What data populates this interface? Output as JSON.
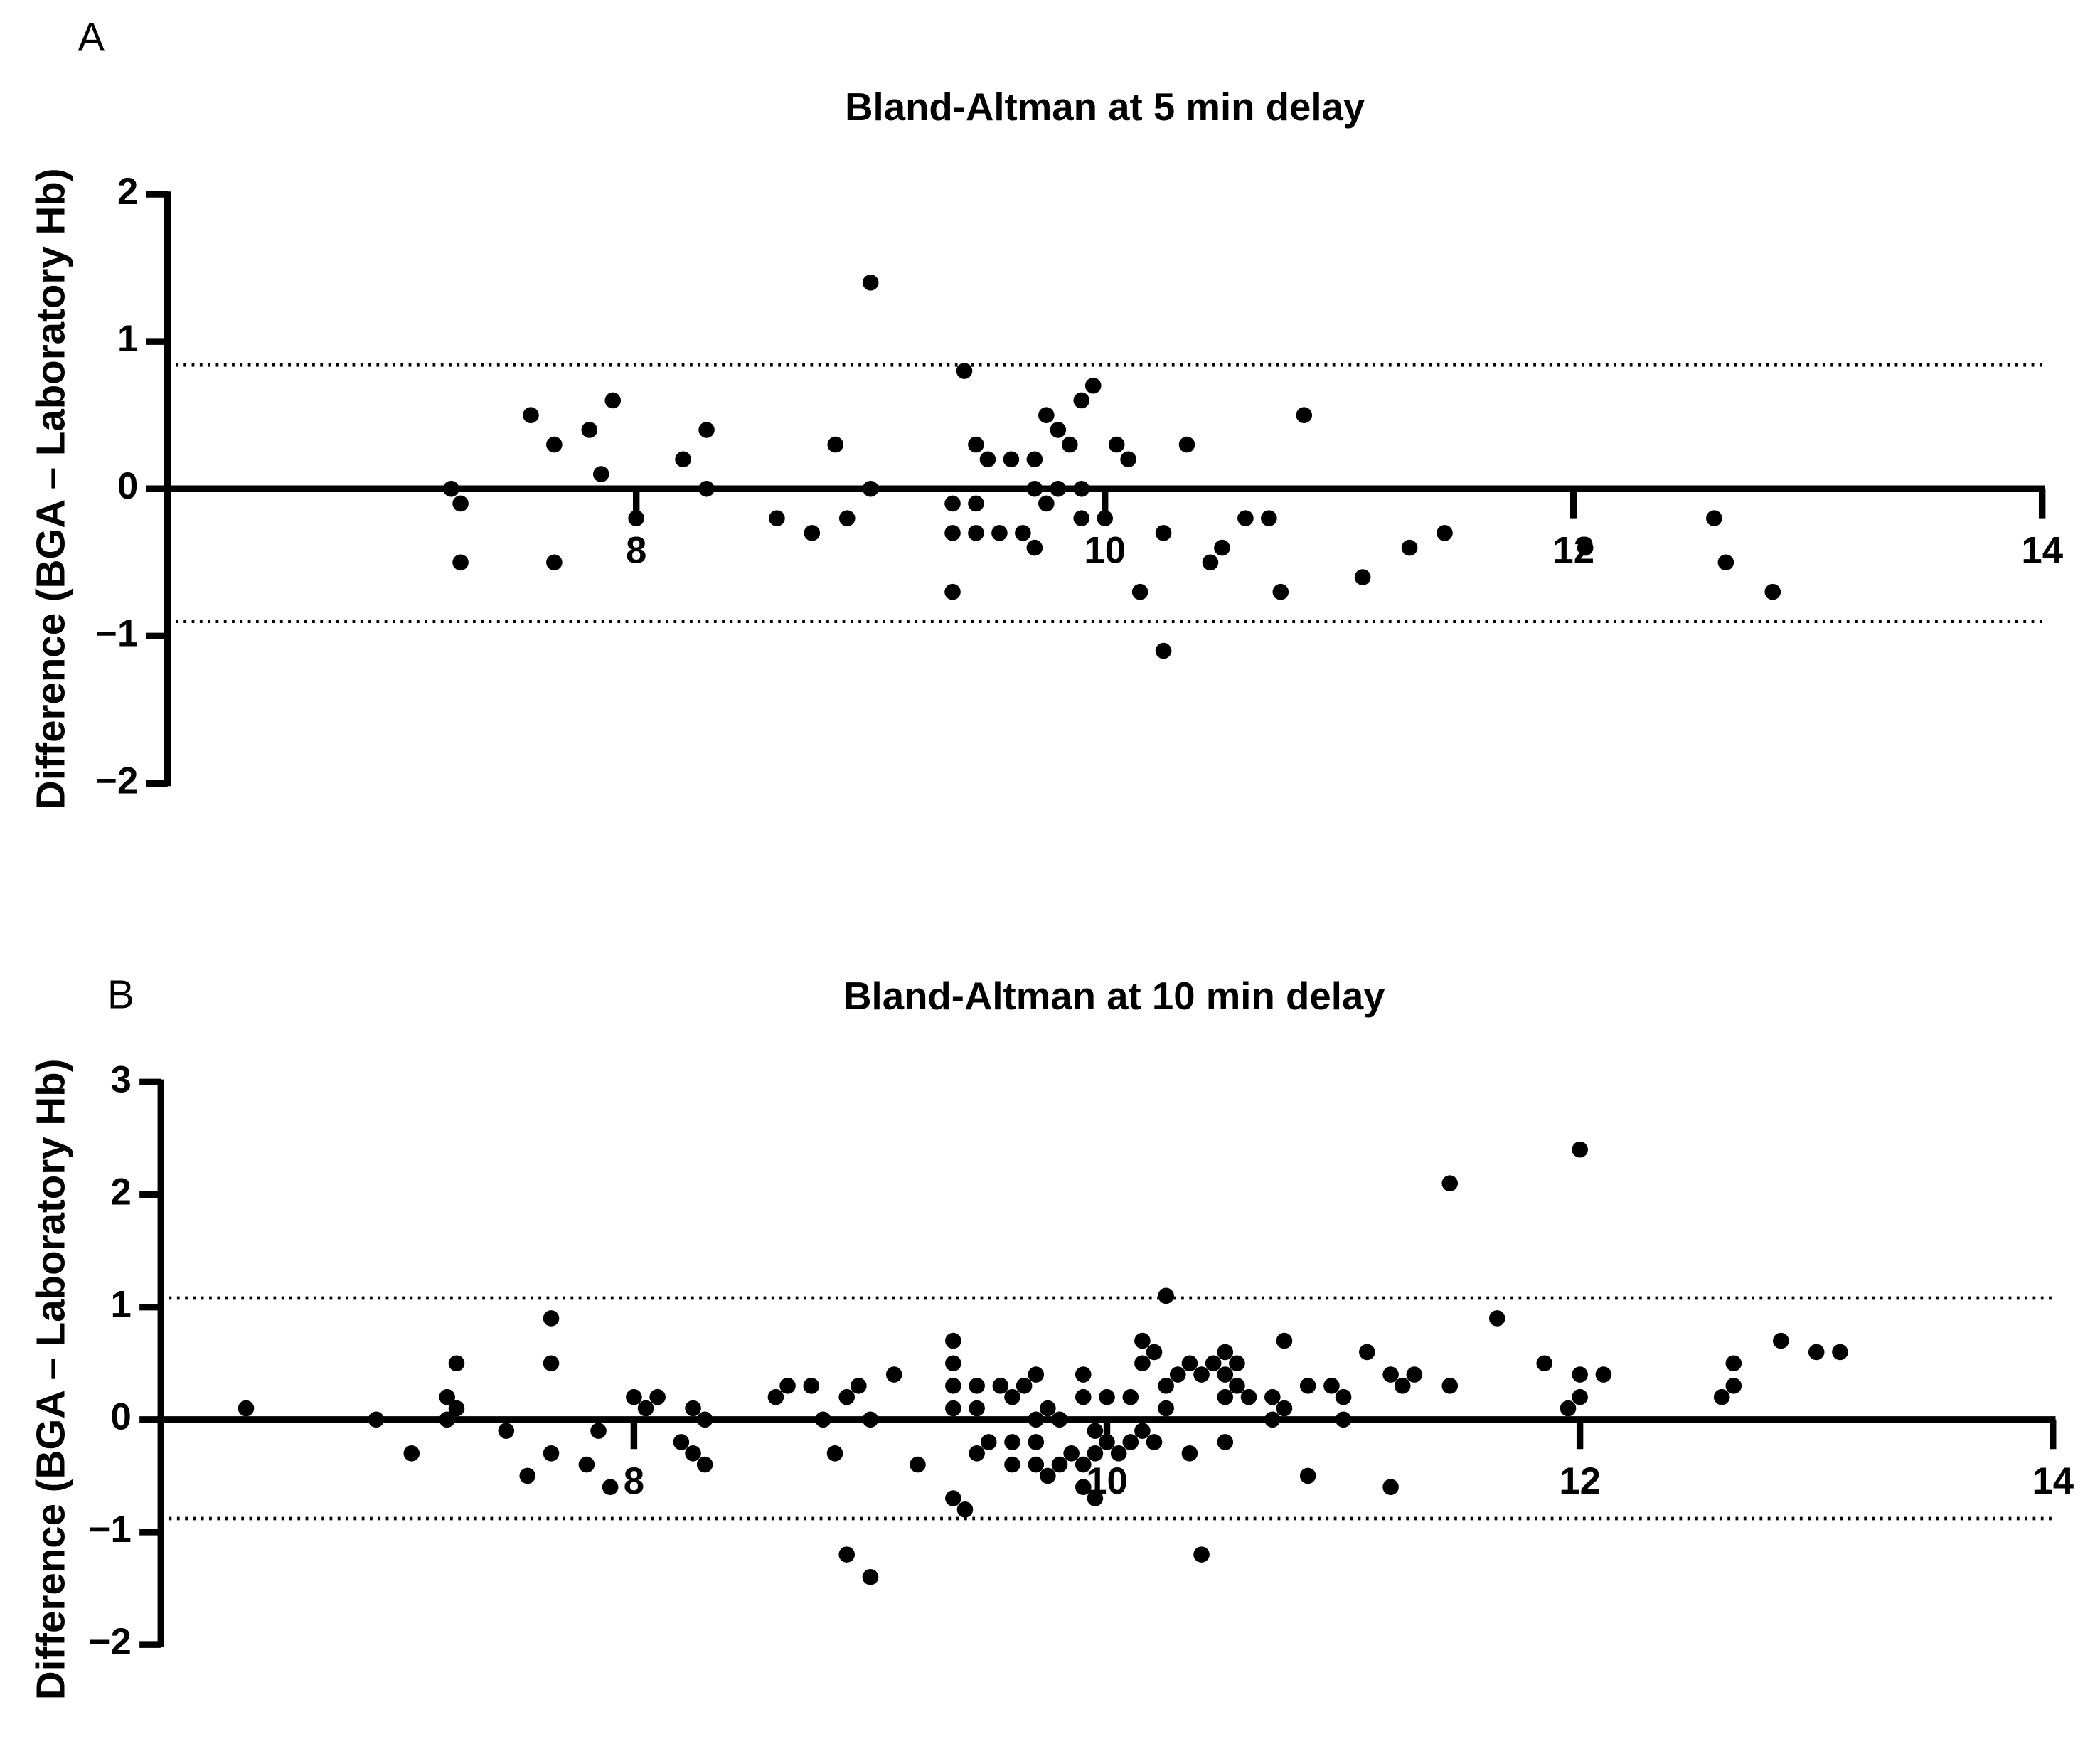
{
  "chart_data": [
    {
      "type": "scatter",
      "panel": "A",
      "title": "Bland-Altman at 5 min delay",
      "y_label": "Difference (BGA – Laboratory Hb)",
      "color": "#000000",
      "xlim": [
        6,
        14
      ],
      "xticks": [
        8,
        10,
        12,
        14
      ],
      "ylim": [
        -2,
        2
      ],
      "yticks": [
        {
          "value": -2,
          "label": "−2"
        },
        {
          "value": -1,
          "label": "−1"
        },
        0,
        1,
        2
      ],
      "reference_lines": [
        0.84,
        -0.9
      ],
      "x": [
        7.21,
        7.25,
        7.25,
        7.55,
        7.65,
        7.65,
        7.8,
        7.85,
        7.9,
        8.0,
        8.2,
        8.3,
        8.3,
        8.6,
        8.75,
        8.85,
        8.9,
        9.0,
        9.0,
        9.35,
        9.35,
        9.35,
        9.4,
        9.45,
        9.45,
        9.45,
        9.5,
        9.55,
        9.6,
        9.65,
        9.7,
        9.7,
        9.7,
        9.75,
        9.75,
        9.8,
        9.8,
        9.85,
        9.9,
        9.9,
        9.9,
        9.95,
        10.0,
        10.05,
        10.1,
        10.15,
        10.25,
        10.25,
        10.35,
        10.45,
        10.5,
        10.6,
        10.7,
        10.75,
        10.85,
        11.1,
        11.3,
        11.45,
        12.05,
        12.6,
        12.65,
        12.85
      ],
      "values": [
        0,
        -0.1,
        -0.5,
        0.5,
        0.3,
        -0.5,
        0.4,
        0.1,
        0.6,
        -0.2,
        0.2,
        0.4,
        0,
        -0.2,
        -0.3,
        0.3,
        -0.2,
        1.4,
        0,
        -0.1,
        -0.3,
        -0.7,
        0.8,
        0.3,
        -0.1,
        -0.3,
        0.2,
        -0.3,
        0.2,
        -0.3,
        0.2,
        0,
        -0.4,
        0.5,
        -0.1,
        0.4,
        0,
        0.3,
        0.6,
        0,
        -0.2,
        0.7,
        -0.2,
        0.3,
        0.2,
        -0.7,
        -0.3,
        -1.1,
        0.3,
        -0.5,
        -0.4,
        -0.2,
        -0.2,
        -0.7,
        0.5,
        -0.6,
        -0.4,
        -0.3,
        -0.4,
        -0.2,
        -0.5,
        -0.7
      ]
    },
    {
      "type": "scatter",
      "panel": "B",
      "title": "Bland-Altman at 10 min delay",
      "y_label": "Difference (BGA – Laboratory Hb)",
      "color": "#000000",
      "xlim": [
        6,
        14
      ],
      "xticks": [
        8,
        10,
        12,
        14
      ],
      "ylim": [
        -2,
        3
      ],
      "yticks": [
        {
          "value": -2,
          "label": "−2"
        },
        {
          "value": -1,
          "label": "−1"
        },
        0,
        1,
        2,
        3
      ],
      "reference_lines": [
        1.08,
        -0.88
      ],
      "x": [
        6.36,
        6.91,
        7.06,
        7.21,
        7.21,
        7.25,
        7.25,
        7.46,
        7.55,
        7.65,
        7.65,
        7.65,
        7.8,
        7.85,
        7.9,
        8.0,
        8.05,
        8.1,
        8.2,
        8.25,
        8.25,
        8.3,
        8.3,
        8.6,
        8.65,
        8.75,
        8.8,
        8.85,
        8.9,
        8.9,
        8.95,
        9.0,
        9.0,
        9.1,
        9.2,
        9.35,
        9.35,
        9.35,
        9.35,
        9.35,
        9.4,
        9.45,
        9.45,
        9.45,
        9.5,
        9.55,
        9.6,
        9.6,
        9.6,
        9.65,
        9.7,
        9.7,
        9.7,
        9.7,
        9.75,
        9.75,
        9.8,
        9.8,
        9.85,
        9.9,
        9.9,
        9.9,
        9.9,
        9.95,
        9.95,
        9.95,
        10.0,
        10.0,
        10.05,
        10.1,
        10.1,
        10.15,
        10.15,
        10.15,
        10.2,
        10.2,
        10.25,
        10.25,
        10.25,
        10.3,
        10.35,
        10.35,
        10.4,
        10.4,
        10.45,
        10.5,
        10.5,
        10.5,
        10.5,
        10.55,
        10.55,
        10.6,
        10.7,
        10.7,
        10.75,
        10.75,
        10.85,
        10.85,
        10.95,
        11.0,
        11.0,
        11.1,
        11.2,
        11.2,
        11.25,
        11.3,
        11.45,
        11.45,
        11.65,
        11.85,
        11.95,
        12.0,
        12.0,
        12.0,
        12.1,
        12.6,
        12.65,
        12.65,
        12.85,
        13.0,
        13.1
      ],
      "values": [
        0.1,
        0,
        -0.3,
        0.2,
        0,
        0.5,
        0.1,
        -0.1,
        -0.5,
        0.9,
        0.5,
        -0.3,
        -0.4,
        -0.1,
        -0.6,
        0.2,
        0.1,
        0.2,
        -0.2,
        0.1,
        -0.3,
        0,
        -0.4,
        0.2,
        0.3,
        0.3,
        0,
        -0.3,
        0.2,
        -1.2,
        0.3,
        0,
        -1.4,
        0.4,
        -0.4,
        0.7,
        0.5,
        0.3,
        0.1,
        -0.7,
        -0.8,
        0.3,
        0.1,
        -0.3,
        -0.2,
        0.3,
        0.2,
        -0.2,
        -0.4,
        0.3,
        0.4,
        0,
        -0.2,
        -0.4,
        0.1,
        -0.5,
        0,
        -0.4,
        -0.3,
        0.4,
        0.2,
        -0.4,
        -0.6,
        -0.1,
        -0.3,
        -0.7,
        0.2,
        -0.2,
        -0.3,
        0.2,
        -0.2,
        0.7,
        0.5,
        -0.1,
        0.6,
        -0.2,
        1.1,
        0.3,
        0.1,
        0.4,
        0.5,
        -0.3,
        0.4,
        -1.2,
        0.5,
        0.6,
        0.4,
        0.2,
        -0.2,
        0.5,
        0.3,
        0.2,
        0.2,
        0,
        0.7,
        0.1,
        0.3,
        -0.5,
        0.3,
        0.2,
        0,
        0.6,
        0.4,
        -0.6,
        0.3,
        0.4,
        2.1,
        0.3,
        0.9,
        0.5,
        0.1,
        2.4,
        0.4,
        0.2,
        0.4,
        0.2,
        0.5,
        0.3,
        0.7,
        0.6,
        0.6
      ]
    }
  ]
}
